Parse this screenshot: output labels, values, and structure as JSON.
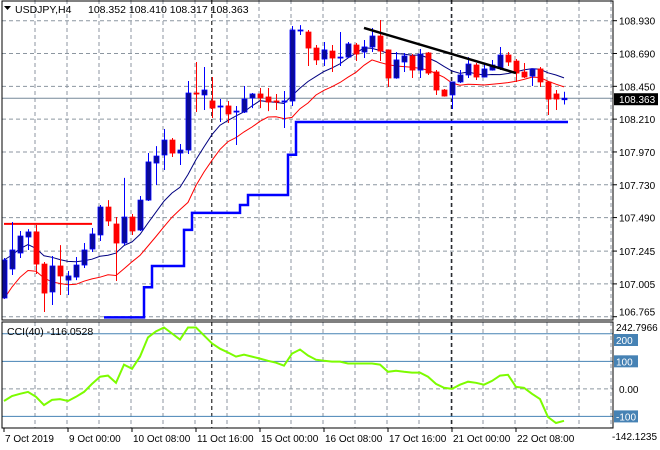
{
  "header": {
    "symbol_timeframe": "USDJPY,H4",
    "ohlc": "108.352 108.410 108.317 108.363"
  },
  "chart_data": {
    "type": "candlestick",
    "symbol": "USDJPY",
    "timeframe": "H4",
    "colors": {
      "bull_body": "#0a0a96",
      "bull_wick": "#0000ff",
      "bear": "#ff0000",
      "grid": "#8c96a0",
      "ma_fast": "#000080",
      "ma_low": "#ff0000",
      "support": "#0000ff",
      "cci": "#7cfc00",
      "cci_levels": "#4682b4"
    },
    "candles_ohlc": [
      [
        106.902,
        107.194,
        106.895,
        107.18
      ],
      [
        107.114,
        107.458,
        107.07,
        107.253
      ],
      [
        107.231,
        107.392,
        107.194,
        107.355
      ],
      [
        107.348,
        107.406,
        107.253,
        107.385
      ],
      [
        107.385,
        107.436,
        107.077,
        107.15
      ],
      [
        107.15,
        107.165,
        106.799,
        106.938
      ],
      [
        106.946,
        107.209,
        106.851,
        107.136
      ],
      [
        107.136,
        107.289,
        106.924,
        107.063
      ],
      [
        107.033,
        107.099,
        106.924,
        107.063
      ],
      [
        107.055,
        107.202,
        107.033,
        107.143
      ],
      [
        107.143,
        107.304,
        107.121,
        107.253
      ],
      [
        107.26,
        107.414,
        107.238,
        107.37
      ],
      [
        107.363,
        107.582,
        107.319,
        107.567
      ],
      [
        107.567,
        107.618,
        107.428,
        107.465
      ],
      [
        107.443,
        107.494,
        107.026,
        107.304
      ],
      [
        107.304,
        107.78,
        107.289,
        107.494
      ],
      [
        107.494,
        107.516,
        107.363,
        107.392
      ],
      [
        107.399,
        107.648,
        107.392,
        107.618
      ],
      [
        107.618,
        107.962,
        107.611,
        107.897
      ],
      [
        107.889,
        108.013,
        107.728,
        107.94
      ],
      [
        107.948,
        108.138,
        107.838,
        108.057
      ],
      [
        108.057,
        108.072,
        107.933,
        107.962
      ],
      [
        107.962,
        108.028,
        107.875,
        107.984
      ],
      [
        107.984,
        108.489,
        107.955,
        108.401
      ],
      [
        108.401,
        108.628,
        108.262,
        108.394
      ],
      [
        108.387,
        108.591,
        108.277,
        108.423
      ],
      [
        108.343,
        108.518,
        108.218,
        108.291
      ],
      [
        108.299,
        108.357,
        108.189,
        108.306
      ],
      [
        108.306,
        108.343,
        108.182,
        108.248
      ],
      [
        108.262,
        108.306,
        108.021,
        108.269
      ],
      [
        108.262,
        108.452,
        108.255,
        108.357
      ],
      [
        108.365,
        108.401,
        108.291,
        108.394
      ],
      [
        108.394,
        108.438,
        108.291,
        108.365
      ],
      [
        108.372,
        108.438,
        108.269,
        108.335
      ],
      [
        108.343,
        108.394,
        108.277,
        108.335
      ],
      [
        108.335,
        108.416,
        108.145,
        108.343
      ],
      [
        108.343,
        108.891,
        108.306,
        108.862
      ],
      [
        108.858,
        108.898,
        108.825,
        108.862
      ],
      [
        108.847,
        108.862,
        108.599,
        108.73
      ],
      [
        108.73,
        108.752,
        108.606,
        108.643
      ],
      [
        108.65,
        108.774,
        108.599,
        108.716
      ],
      [
        108.708,
        108.752,
        108.555,
        108.657
      ],
      [
        108.657,
        108.847,
        108.599,
        108.664
      ],
      [
        108.664,
        108.774,
        108.657,
        108.76
      ],
      [
        108.752,
        108.767,
        108.635,
        108.686
      ],
      [
        108.701,
        108.789,
        108.657,
        108.738
      ],
      [
        108.738,
        108.877,
        108.701,
        108.818
      ],
      [
        108.818,
        108.935,
        108.635,
        108.708
      ],
      [
        108.716,
        108.72,
        108.445,
        108.511
      ],
      [
        108.511,
        108.701,
        108.505,
        108.643
      ],
      [
        108.628,
        108.694,
        108.555,
        108.672
      ],
      [
        108.672,
        108.686,
        108.511,
        108.569
      ],
      [
        108.569,
        108.723,
        108.511,
        108.686
      ],
      [
        108.694,
        108.701,
        108.533,
        108.547
      ],
      [
        108.555,
        108.569,
        108.387,
        108.423
      ],
      [
        108.423,
        108.43,
        108.375,
        108.379
      ],
      [
        108.387,
        108.482,
        108.284,
        108.482
      ],
      [
        108.482,
        108.569,
        108.474,
        108.533
      ],
      [
        108.533,
        108.664,
        108.511,
        108.613
      ],
      [
        108.606,
        108.621,
        108.496,
        108.518
      ],
      [
        108.518,
        108.613,
        108.515,
        108.577
      ],
      [
        108.569,
        108.643,
        108.565,
        108.606
      ],
      [
        108.585,
        108.738,
        108.569,
        108.679
      ],
      [
        108.679,
        108.701,
        108.599,
        108.628
      ],
      [
        108.635,
        108.65,
        108.482,
        108.547
      ],
      [
        108.555,
        108.621,
        108.511,
        108.518
      ],
      [
        108.525,
        108.58,
        108.452,
        108.577
      ],
      [
        108.577,
        108.591,
        108.445,
        108.482
      ],
      [
        108.482,
        108.489,
        108.24,
        108.357
      ],
      [
        108.394,
        108.423,
        108.277,
        108.357
      ],
      [
        108.352,
        108.41,
        108.317,
        108.363
      ]
    ],
    "price_axis": {
      "ylim": [
        106.765,
        108.93
      ],
      "ticks": [
        "108.930",
        "108.690",
        "108.450",
        "108.210",
        "107.970",
        "107.730",
        "107.490",
        "107.245",
        "107.005",
        "106.765"
      ]
    },
    "current_price": "108.363",
    "x_labels": [
      {
        "label": "7 Oct 2019",
        "bar": 1
      },
      {
        "label": "9 Oct 00:00",
        "bar": 9
      },
      {
        "label": "10 Oct 08:00",
        "bar": 17
      },
      {
        "label": "11 Oct 16:00",
        "bar": 25
      },
      {
        "label": "15 Oct 00:00",
        "bar": 33
      },
      {
        "label": "16 Oct 08:00",
        "bar": 41
      },
      {
        "label": "17 Oct 16:00",
        "bar": 49
      },
      {
        "label": "21 Oct 00:00",
        "bar": 57
      },
      {
        "label": "22 Oct 08:00",
        "bar": 65
      }
    ],
    "period_separators_bars": [
      27.1,
      57.1
    ],
    "indicators": {
      "ma_fast": {
        "source": "close",
        "period": 10
      },
      "ma_low": {
        "source": "low",
        "period": 10
      },
      "support_steps": [
        {
          "from_bar": 14,
          "to_bar": 18,
          "price": 106.76
        },
        {
          "from_bar": 19,
          "to_bar": 19,
          "price": 106.98
        },
        {
          "from_bar": 20,
          "to_bar": 23,
          "price": 107.136
        },
        {
          "from_bar": 24,
          "to_bar": 24,
          "price": 107.4
        },
        {
          "from_bar": 25,
          "to_bar": 30,
          "price": 107.524
        },
        {
          "from_bar": 31,
          "to_bar": 31,
          "price": 107.582
        },
        {
          "from_bar": 32,
          "to_bar": 36,
          "price": 107.655
        },
        {
          "from_bar": 37,
          "to_bar": 37,
          "price": 107.95
        },
        {
          "from_bar": 38,
          "to_bar": 71,
          "price": 108.189
        }
      ],
      "resistance_line": {
        "from_bar": 1,
        "to_bar": 12,
        "price": 107.444
      },
      "trendline": {
        "from_bar": 46,
        "from_price": 108.877,
        "to_bar": 65,
        "to_price": 108.547
      }
    },
    "cci": {
      "title": "CCI(40) -116.0528",
      "period": 40,
      "ylim": [
        -142.1235,
        242.7966
      ],
      "scale_max_label": "242.7966",
      "scale_min_label": "-142.1235",
      "levels": [
        {
          "value": 200,
          "label": "200",
          "boxed": true
        },
        {
          "value": 100,
          "label": "100",
          "boxed": true
        },
        {
          "value": 0,
          "label": "0.00",
          "boxed": false
        },
        {
          "value": -100,
          "label": "-100",
          "boxed": true
        }
      ],
      "values": [
        -44,
        -26,
        -18,
        -11,
        -29,
        -59,
        -40,
        -37,
        -44,
        -29,
        -11,
        18,
        44,
        48,
        22,
        88,
        73,
        117,
        187,
        209,
        223,
        201,
        179,
        223,
        223,
        194,
        165,
        146,
        132,
        117,
        124,
        117,
        110,
        102,
        95,
        84,
        128,
        143,
        121,
        106,
        102,
        99,
        99,
        92,
        92,
        92,
        92,
        88,
        62,
        66,
        62,
        59,
        59,
        44,
        18,
        4,
        0,
        15,
        26,
        22,
        15,
        29,
        48,
        51,
        7,
        4,
        -18,
        -37,
        -102,
        -124,
        -116.05
      ]
    }
  }
}
